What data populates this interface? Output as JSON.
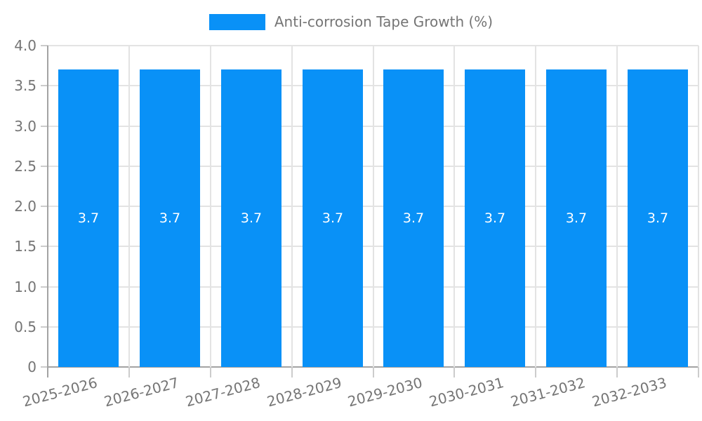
{
  "legend": {
    "label": "Anti-corrosion Tape Growth (%)"
  },
  "colors": {
    "bar": "#0991f7",
    "grid_line": "#e3e3e3",
    "axis_line": "#a3a3a3",
    "tick_mark": "#cccccc",
    "tick_label": "#757575",
    "legend_label": "#757575",
    "value_label": "#ffffff",
    "background": "#ffffff"
  },
  "chart_data": {
    "type": "bar",
    "title": "Anti-corrosion Tape Growth (%)",
    "categories": [
      "2025-2026",
      "2026-2027",
      "2027-2028",
      "2028-2029",
      "2029-2030",
      "2030-2031",
      "2031-2032",
      "2032-2033"
    ],
    "series": [
      {
        "name": "Anti-corrosion Tape Growth (%)",
        "values": [
          3.7,
          3.7,
          3.7,
          3.7,
          3.7,
          3.7,
          3.7,
          3.7
        ]
      }
    ],
    "value_labels": [
      "3.7",
      "3.7",
      "3.7",
      "3.7",
      "3.7",
      "3.7",
      "3.7",
      "3.7"
    ],
    "xlabel": "",
    "ylabel": "",
    "ylim": [
      0,
      4
    ],
    "yticks": [
      0,
      0.5,
      1,
      1.5,
      2,
      2.5,
      3,
      3.5,
      4
    ],
    "ytick_labels": [
      "0",
      "0.5",
      "1.0",
      "1.5",
      "2.0",
      "2.5",
      "3.0",
      "3.5",
      "4.0"
    ],
    "grid": true,
    "legend_position": "top",
    "bar_label_position": "center",
    "x_tick_rotation_deg": -15
  }
}
